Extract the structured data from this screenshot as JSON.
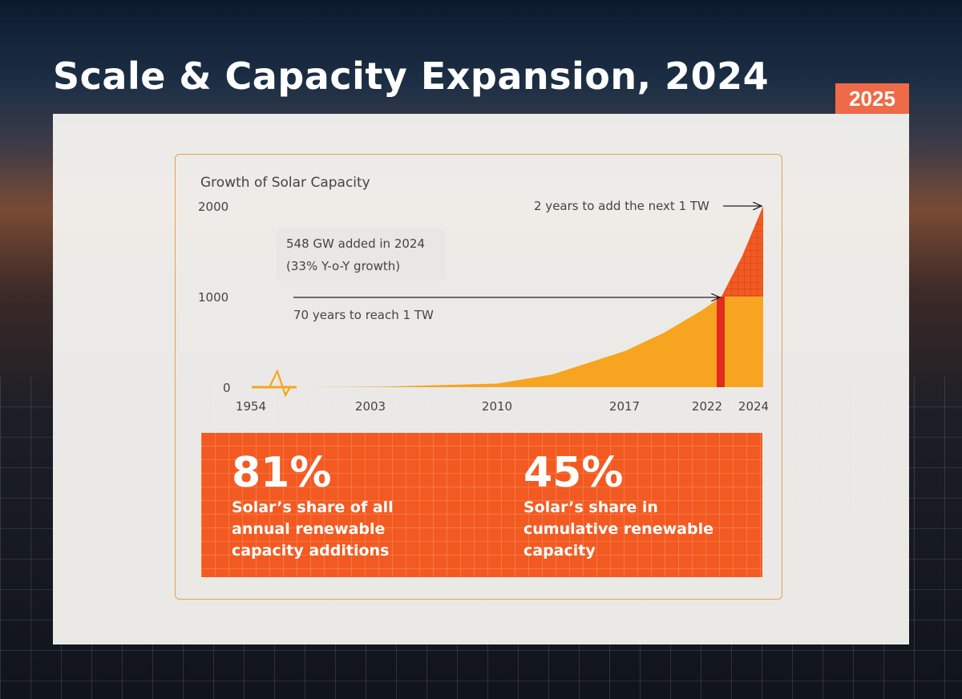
{
  "page": {
    "title": "Scale & Capacity Expansion, 2024",
    "year_badge": "2025"
  },
  "colors": {
    "accent": "#ef6a46",
    "area_fill": "#f7a520",
    "highlight_fill": "#f25a22",
    "marker_2022": "#e22b1d"
  },
  "chart_data": {
    "type": "area",
    "title": "Growth of Solar Capacity",
    "x_ticks": [
      "1954",
      "2003",
      "2010",
      "2017",
      "2022",
      "2024"
    ],
    "y_ticks": [
      "0",
      "1000",
      "2000"
    ],
    "ylim": [
      0,
      2000
    ],
    "x": [
      2003,
      2006,
      2010,
      2013,
      2017,
      2019,
      2021,
      2022,
      2023,
      2024
    ],
    "values": [
      0,
      5,
      40,
      140,
      400,
      600,
      850,
      1000,
      1450,
      2000
    ],
    "axis_break": "1954-2003",
    "grid": false,
    "annotations": {
      "added_2024_line1": "548 GW added in 2024",
      "added_2024_line2": "(33% Y-o-Y growth)",
      "to_1tw": "70 years to reach 1 TW",
      "next_1tw": "2 years to add the next 1 TW"
    }
  },
  "stats": [
    {
      "value": "81%",
      "label": "Solar’s share of all\nannual renewable\ncapacity additions"
    },
    {
      "value": "45%",
      "label": "Solar’s share in\ncumulative renewable\ncapacity"
    }
  ]
}
